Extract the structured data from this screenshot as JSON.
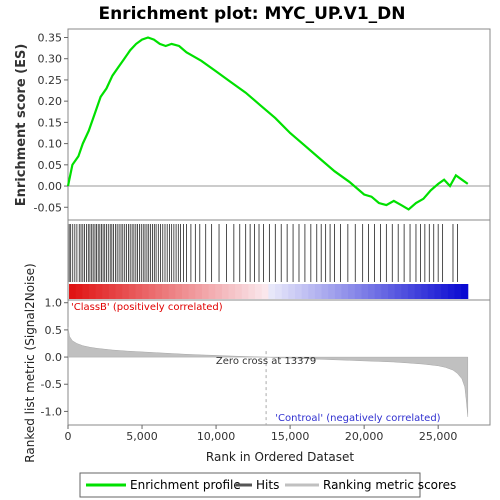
{
  "chart_data": {
    "type": "line",
    "title": "Enrichment plot: MYC_UP.V1_DN",
    "top_panel": {
      "ylabel": "Enrichment score (ES)",
      "ylim": [
        -0.08,
        0.37
      ],
      "yticks": [
        -0.05,
        0.0,
        0.05,
        0.1,
        0.15,
        0.2,
        0.25,
        0.3,
        0.35
      ],
      "ytick_labels": [
        "-0.05",
        "0.00",
        "0.05",
        "0.10",
        "0.15",
        "0.20",
        "0.25",
        "0.30",
        "0.35"
      ],
      "series": [
        {
          "name": "Enrichment profile",
          "color": "#00e000",
          "x": [
            0,
            300,
            700,
            1000,
            1400,
            1800,
            2200,
            2600,
            3000,
            3400,
            3800,
            4200,
            4600,
            5000,
            5400,
            5800,
            6200,
            6600,
            7000,
            7500,
            8000,
            8500,
            9000,
            10000,
            11000,
            12000,
            13000,
            14000,
            15000,
            16000,
            17000,
            18000,
            19000,
            20000,
            20500,
            21000,
            21500,
            22000,
            22500,
            23000,
            23500,
            24000,
            24500,
            25000,
            25400,
            25800,
            26200,
            26600,
            27000
          ],
          "y": [
            0.0,
            0.05,
            0.07,
            0.1,
            0.13,
            0.17,
            0.21,
            0.23,
            0.26,
            0.28,
            0.3,
            0.32,
            0.335,
            0.345,
            0.35,
            0.345,
            0.335,
            0.33,
            0.335,
            0.33,
            0.315,
            0.305,
            0.295,
            0.27,
            0.245,
            0.22,
            0.19,
            0.16,
            0.125,
            0.095,
            0.065,
            0.035,
            0.01,
            -0.02,
            -0.025,
            -0.04,
            -0.045,
            -0.035,
            -0.045,
            -0.055,
            -0.04,
            -0.03,
            -0.01,
            0.005,
            0.015,
            0.0,
            0.025,
            0.015,
            0.005
          ]
        }
      ]
    },
    "hits_panel": {
      "legend": "Hits",
      "hit_positions": [
        80,
        180,
        320,
        460,
        600,
        760,
        880,
        1000,
        1120,
        1250,
        1370,
        1480,
        1600,
        1700,
        1820,
        1930,
        2040,
        2150,
        2260,
        2370,
        2480,
        2600,
        2720,
        2850,
        2960,
        3080,
        3200,
        3320,
        3450,
        3580,
        3700,
        3830,
        3950,
        4080,
        4200,
        4330,
        4450,
        4580,
        4700,
        4830,
        4950,
        5080,
        5200,
        5330,
        5450,
        5580,
        5700,
        5830,
        5950,
        6100,
        6250,
        6400,
        6550,
        6700,
        6850,
        7000,
        7150,
        7300,
        7450,
        7600,
        7800,
        8000,
        8300,
        8600,
        8900,
        9300,
        9700,
        10200,
        10700,
        11200,
        11600,
        12000,
        12300,
        12600,
        12900,
        13200,
        13600,
        14000,
        14400,
        14800,
        15200,
        15600,
        16000,
        16400,
        16800,
        17100,
        17400,
        17700,
        18000,
        18400,
        18900,
        19400,
        19900,
        20300,
        20700,
        21100,
        21500,
        21900,
        22300,
        22700,
        23100,
        23500,
        23800,
        24100,
        24400,
        24700,
        25000,
        25300,
        26000,
        26300
      ]
    },
    "rank_colorbar": {
      "label_left": "'ClassB' (positively correlated)",
      "label_right": "'Controal' (negatively correlated)",
      "color_positive": "#e00000",
      "color_negative": "#0000d0"
    },
    "bottom_panel": {
      "ylabel": "Ranked list metric (Signal2Noise)",
      "ylim": [
        -1.25,
        1.05
      ],
      "yticks": [
        -1.0,
        -0.5,
        0.0,
        0.5,
        1.0
      ],
      "ytick_labels": [
        "-1.0",
        "-0.5",
        "0.0",
        "0.5",
        "1.0"
      ],
      "series": [
        {
          "name": "Ranking metric scores",
          "color": "#c0c0c0",
          "x": [
            0,
            100,
            300,
            600,
            1000,
            1500,
            2000,
            3000,
            4000,
            5000,
            6000,
            7000,
            8000,
            9000,
            10000,
            11000,
            12000,
            13379,
            14000,
            15000,
            16000,
            17000,
            18000,
            19000,
            20000,
            21000,
            22000,
            23000,
            24000,
            25000,
            25500,
            26000,
            26300,
            26600,
            26800,
            26900,
            27000
          ],
          "y": [
            0.55,
            0.38,
            0.3,
            0.25,
            0.21,
            0.18,
            0.16,
            0.13,
            0.11,
            0.095,
            0.08,
            0.065,
            0.05,
            0.04,
            0.03,
            0.02,
            0.01,
            0.0,
            -0.01,
            -0.02,
            -0.03,
            -0.04,
            -0.05,
            -0.06,
            -0.07,
            -0.08,
            -0.09,
            -0.11,
            -0.13,
            -0.16,
            -0.19,
            -0.24,
            -0.3,
            -0.4,
            -0.55,
            -0.8,
            -1.1
          ]
        }
      ],
      "zero_cross_label": "Zero cross at 13379",
      "zero_cross_x": 13379
    },
    "xaxis": {
      "label": "Rank in Ordered Dataset",
      "xlim": [
        0,
        28500
      ],
      "xticks": [
        0,
        5000,
        10000,
        15000,
        20000,
        25000
      ],
      "xtick_labels": [
        "0",
        "5,000",
        "10,000",
        "15,000",
        "20,000",
        "25,000"
      ]
    },
    "legend": {
      "placement": "bottom",
      "items": [
        {
          "label": "Enrichment profile",
          "color": "#00e000"
        },
        {
          "label": "Hits",
          "color": "#555555"
        },
        {
          "label": "Ranking metric scores",
          "color": "#c0c0c0"
        }
      ]
    }
  }
}
